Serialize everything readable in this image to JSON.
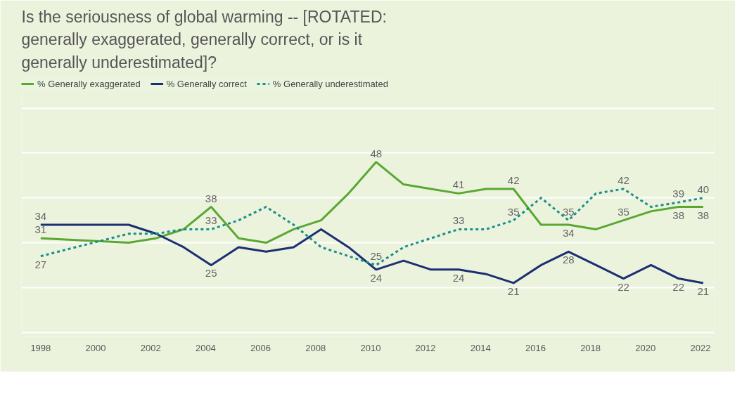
{
  "chart_data": {
    "type": "line",
    "title": "Is the seriousness of global warming -- [ROTATED: generally exaggerated, generally correct, or is it generally underestimated]?",
    "x": [
      1998,
      2001.2,
      2002.2,
      2003.2,
      2004.2,
      2005.2,
      2006.2,
      2007.2,
      2008.2,
      2009.2,
      2010.2,
      2011.2,
      2012.2,
      2013.2,
      2014.2,
      2015.2,
      2016.2,
      2017.2,
      2018.2,
      2019.2,
      2020.2,
      2021.2,
      2022.1
    ],
    "xlim": [
      1997.3,
      2022.5
    ],
    "xticks": [
      1998,
      2000,
      2002,
      2004,
      2006,
      2008,
      2010,
      2012,
      2014,
      2016,
      2018,
      2020,
      2022
    ],
    "ylim": [
      9,
      67
    ],
    "yticks": [
      {
        "value": 10,
        "label": null
      },
      {
        "value": 20,
        "label": null
      },
      {
        "value": 30,
        "label": null
      },
      {
        "value": 40,
        "label": null
      },
      {
        "value": 50,
        "label": null
      },
      {
        "value": 60,
        "label": null
      }
    ],
    "tick_labels": "x",
    "grid": "y",
    "legend": "top left",
    "marker": "none",
    "series": [
      {
        "name": "% Generally exaggerated",
        "color": "#5aa832",
        "line_style": "solid",
        "values": [
          31,
          30,
          31,
          33,
          38,
          31,
          30,
          33,
          35,
          41,
          48,
          43,
          42,
          41,
          42,
          42,
          34,
          34,
          33,
          35,
          37,
          38,
          38
        ],
        "value_labels": [
          "31",
          null,
          null,
          null,
          "38",
          null,
          null,
          null,
          null,
          null,
          "48",
          null,
          null,
          "41",
          null,
          "42",
          null,
          "34",
          null,
          "35",
          null,
          "38",
          "38"
        ]
      },
      {
        "name": "% Generally correct",
        "color": "#1c2f72",
        "line_style": "solid",
        "values": [
          34,
          34,
          32,
          29,
          25,
          29,
          28,
          29,
          33,
          29,
          24,
          26,
          24,
          24,
          23,
          21,
          25,
          28,
          25,
          22,
          25,
          22,
          21
        ],
        "value_labels": [
          "34",
          null,
          null,
          null,
          "25",
          null,
          null,
          null,
          null,
          null,
          "24",
          null,
          null,
          "24",
          null,
          "21",
          null,
          "28",
          null,
          "22",
          null,
          "22",
          "21"
        ]
      },
      {
        "name": "% Generally underestimated",
        "color": "#1a8f8a",
        "line_style": "dashed",
        "values": [
          27,
          32,
          32,
          33,
          33,
          35,
          38,
          34,
          29,
          27,
          25,
          29,
          31,
          33,
          33,
          35,
          40,
          35,
          41,
          42,
          38,
          39,
          40
        ],
        "value_labels": [
          "27",
          null,
          null,
          null,
          "33",
          null,
          null,
          null,
          null,
          null,
          "25",
          null,
          null,
          "33",
          null,
          "35",
          null,
          "35",
          null,
          "42",
          null,
          "39",
          "40"
        ]
      }
    ]
  }
}
